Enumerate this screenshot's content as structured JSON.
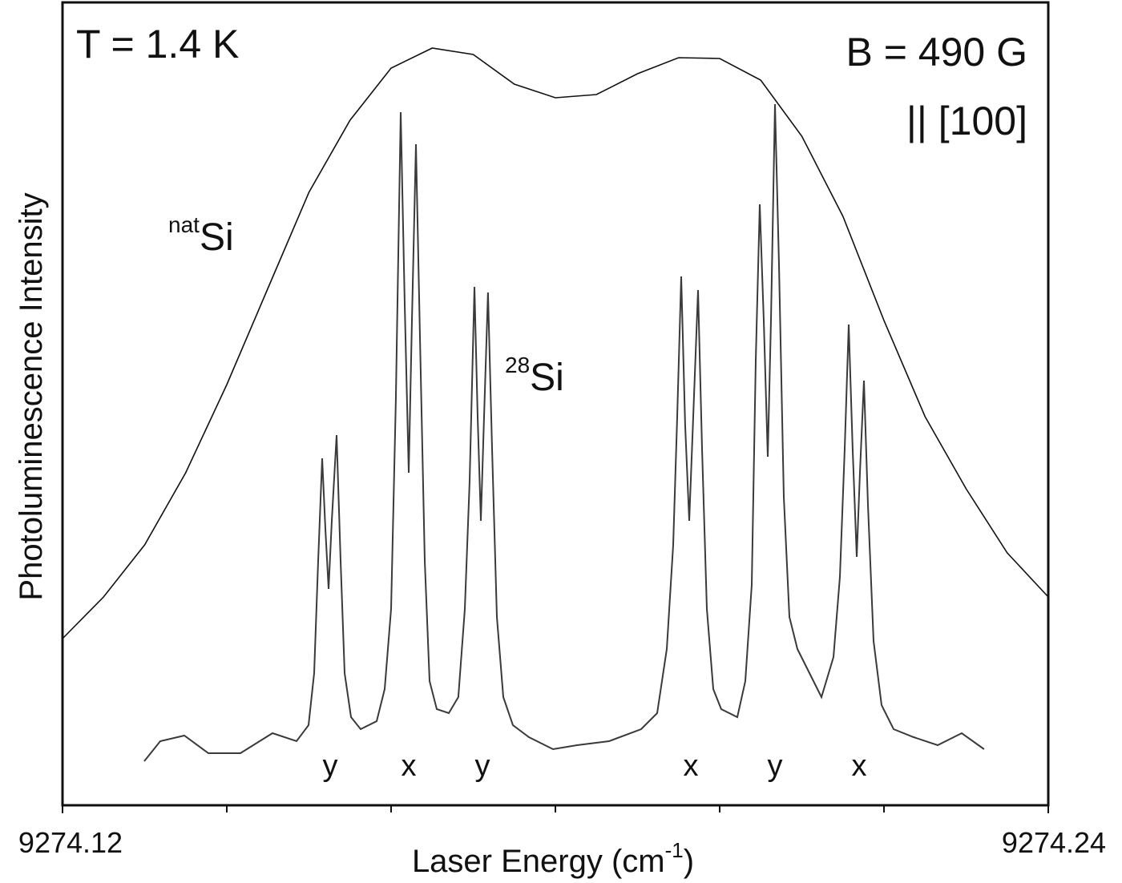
{
  "chart_data": {
    "type": "line",
    "annotations": {
      "temperature": "T = 1.4 K",
      "field": "B = 490 G",
      "direction": "|| [100]"
    },
    "ylabel": "Photoluminescence Intensity",
    "xlabel": {
      "text": "Laser Energy (cm",
      "sup": "-1",
      "end": ")"
    },
    "xlim": [
      9274.12,
      9274.24
    ],
    "ylim": [
      0,
      100
    ],
    "xticks": [
      9274.12,
      9274.24
    ],
    "xminor_ticks": [
      9274.14,
      9274.16,
      9274.18,
      9274.2,
      9274.22
    ],
    "peak_labels": [
      "y",
      "x",
      "y",
      "x",
      "y",
      "x"
    ],
    "series": [
      {
        "label": {
          "sup": "nat",
          "text": "Si"
        },
        "color": "#111111",
        "x": [
          9274.12,
          9274.125,
          9274.13,
          9274.135,
          9274.14,
          9274.145,
          9274.15,
          9274.155,
          9274.16,
          9274.165,
          9274.17,
          9274.175,
          9274.18,
          9274.185,
          9274.19,
          9274.195,
          9274.2,
          9274.205,
          9274.21,
          9274.215,
          9274.22,
          9274.225,
          9274.23,
          9274.235,
          9274.24
        ],
        "values": [
          20.8,
          26.0,
          32.5,
          41.5,
          52.5,
          64.5,
          76.5,
          85.5,
          92.0,
          94.5,
          93.7,
          90.0,
          88.3,
          88.7,
          91.3,
          93.3,
          93.2,
          90.5,
          83.5,
          73.5,
          60.5,
          48.5,
          39.5,
          31.5,
          26.0
        ]
      },
      {
        "label": {
          "sup": "28",
          "text": "Si"
        },
        "color": "#3a3a3a",
        "x": [
          9274.12995,
          9274.1319,
          9274.13483,
          9274.13776,
          9274.14166,
          9274.14556,
          9274.14849,
          9274.14995,
          9274.15063,
          9274.15112,
          9274.15161,
          9274.152,
          9274.15239,
          9274.15278,
          9274.15337,
          9274.15385,
          9274.15434,
          9274.15512,
          9274.15629,
          9274.15824,
          9274.15922,
          9274.16,
          9274.16058,
          9274.16117,
          9274.16166,
          9274.16215,
          9274.16254,
          9274.16302,
          9274.16351,
          9274.1641,
          9274.16468,
          9274.16556,
          9274.16702,
          9274.16819,
          9274.16898,
          9274.16956,
          9274.17015,
          9274.17054,
          9274.17093,
          9274.17132,
          9274.1718,
          9274.17229,
          9274.17288,
          9274.17366,
          9274.17483,
          9274.17678,
          9274.17971,
          9274.18263,
          9274.18654,
          9274.19044,
          9274.19239,
          9274.19356,
          9274.19434,
          9274.19483,
          9274.19532,
          9274.1958,
          9274.19629,
          9274.19678,
          9274.19737,
          9274.19785,
          9274.19844,
          9274.19922,
          9274.20019,
          9274.20215,
          9274.20312,
          9274.2039,
          9274.20439,
          9274.20488,
          9274.20537,
          9274.20585,
          9274.20624,
          9274.20673,
          9274.20722,
          9274.2078,
          9274.20849,
          9274.20946,
          9274.21093,
          9274.21239,
          9274.21385,
          9274.21463,
          9274.21522,
          9274.21571,
          9274.21619,
          9274.21668,
          9274.21707,
          9274.21756,
          9274.21805,
          9274.21873,
          9274.21971,
          9274.22117,
          9274.22361,
          9274.22654,
          9274.22946,
          9274.23219
        ],
        "values": [
          5.5,
          8.0,
          8.7,
          6.5,
          6.5,
          9.0,
          8.0,
          10.0,
          16.5,
          30.5,
          43.3,
          34.5,
          27.0,
          35.5,
          46.2,
          30.5,
          16.5,
          11.0,
          9.5,
          10.5,
          14.5,
          24.5,
          50.5,
          86.5,
          62.5,
          41.5,
          60.5,
          82.5,
          58.5,
          30.5,
          15.5,
          12.0,
          11.5,
          13.5,
          24.5,
          40.5,
          64.7,
          48.5,
          35.5,
          48.5,
          64.0,
          44.5,
          23.5,
          13.5,
          10.0,
          8.5,
          7.0,
          7.5,
          8.0,
          9.5,
          11.5,
          19.5,
          32.5,
          48.5,
          66.0,
          47.5,
          35.5,
          48.5,
          64.3,
          44.5,
          24.5,
          14.5,
          12.0,
          11.0,
          15.5,
          27.5,
          55.5,
          75.0,
          60.5,
          43.5,
          60.5,
          87.5,
          67.5,
          38.5,
          23.5,
          19.5,
          16.5,
          13.5,
          18.5,
          28.5,
          44.5,
          60.0,
          44.5,
          31.0,
          41.5,
          53.0,
          37.5,
          20.5,
          12.5,
          9.5,
          8.5,
          7.5,
          9.0,
          7.0
        ]
      }
    ]
  }
}
